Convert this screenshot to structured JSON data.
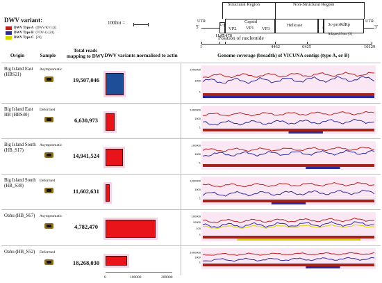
{
  "legend": {
    "title": "DWV variant:",
    "items": [
      {
        "name": "DWV Type A",
        "note": "(DWV/KV) [3]",
        "color": "#b5221e"
      },
      {
        "name": "DWV Type B",
        "note": "(VDV-1) [24]",
        "color": "#2a2a9c"
      },
      {
        "name": "DWV Type C",
        "note": "[26]",
        "color": "#d6d600"
      }
    ]
  },
  "scale": {
    "label": "1000nt ="
  },
  "genome_map": {
    "structural": "Structural Region",
    "nonstructural": "Non-Structural Region",
    "utr_left": "UTR",
    "utr_right": "UTR",
    "five_prime": "5'",
    "three_prime": "3'",
    "lp": "L-p",
    "vp2": "VP2",
    "capsid": "Capsid",
    "vp1": "VP1",
    "vp3": "VP3",
    "helicase": "Helicase",
    "vpg": "VPg",
    "rdrp": "3c-proRdRp",
    "adapted": "Adapted from [3]",
    "positions": [
      "1",
      "1145",
      "1478",
      "4462",
      "6425",
      "10129"
    ],
    "axis_title": "Position of nucleotide"
  },
  "headers": {
    "origin": "Origin",
    "sample": "Sample",
    "reads": "Total reads mapping to DWV",
    "normalised": "DWV variants normalised to actin",
    "coverage": "Genome coverage (breadth) of VICUNA contigs (type A, or B)"
  },
  "rows": [
    {
      "origin": "Big Island East (HBS21)",
      "sample": "Asymptomatic",
      "reads": "19,507,046",
      "bar_value": 55000,
      "bar_color": "#1f4e99",
      "ymax": "1000000",
      "yticks": [
        "1000000",
        "1000",
        "1"
      ],
      "has_c": false
    },
    {
      "origin": "Big Island East HB (HBS40)",
      "sample": "Deformed",
      "reads": "6,630,973",
      "bar_value": 28000,
      "bar_color": "#e8141a",
      "ymax": "1000000",
      "yticks": [
        "1000000",
        "1000",
        "1"
      ],
      "has_c": false
    },
    {
      "origin": "Big Island South (HB_S17)",
      "sample": "Asymptomatic",
      "reads": "14,941,524",
      "bar_value": 52000,
      "bar_color": "#e8141a",
      "ymax": "100000",
      "yticks": [
        "100000",
        "1000",
        "1"
      ],
      "has_c": false
    },
    {
      "origin": "Big Island South (HB_S38)",
      "sample": "Deformed",
      "reads": "11,602,631",
      "bar_value": 12000,
      "bar_color": "#e8141a",
      "ymax": "1000000",
      "yticks": [
        "1000000",
        "1000",
        "1"
      ],
      "has_c": false
    },
    {
      "origin": "Oahu (HB_S67)",
      "sample": "Asymptomatic",
      "reads": "4,782,470",
      "bar_value": 150000,
      "bar_color": "#e8141a",
      "ymax": "100000",
      "yticks": [
        "100000",
        "10000",
        "100",
        "1"
      ],
      "has_c": true
    },
    {
      "origin": "Oahu (HB_S52)",
      "sample": "Deformed",
      "reads": "18,268,030",
      "bar_value": 65000,
      "bar_color": "#e8141a",
      "ymax": "1000000",
      "yticks": [
        "1000000",
        "1000",
        "1"
      ],
      "has_c": false
    }
  ],
  "bar_axis": {
    "ticks": [
      "0",
      "100000",
      "200000"
    ],
    "max": 200000
  }
}
